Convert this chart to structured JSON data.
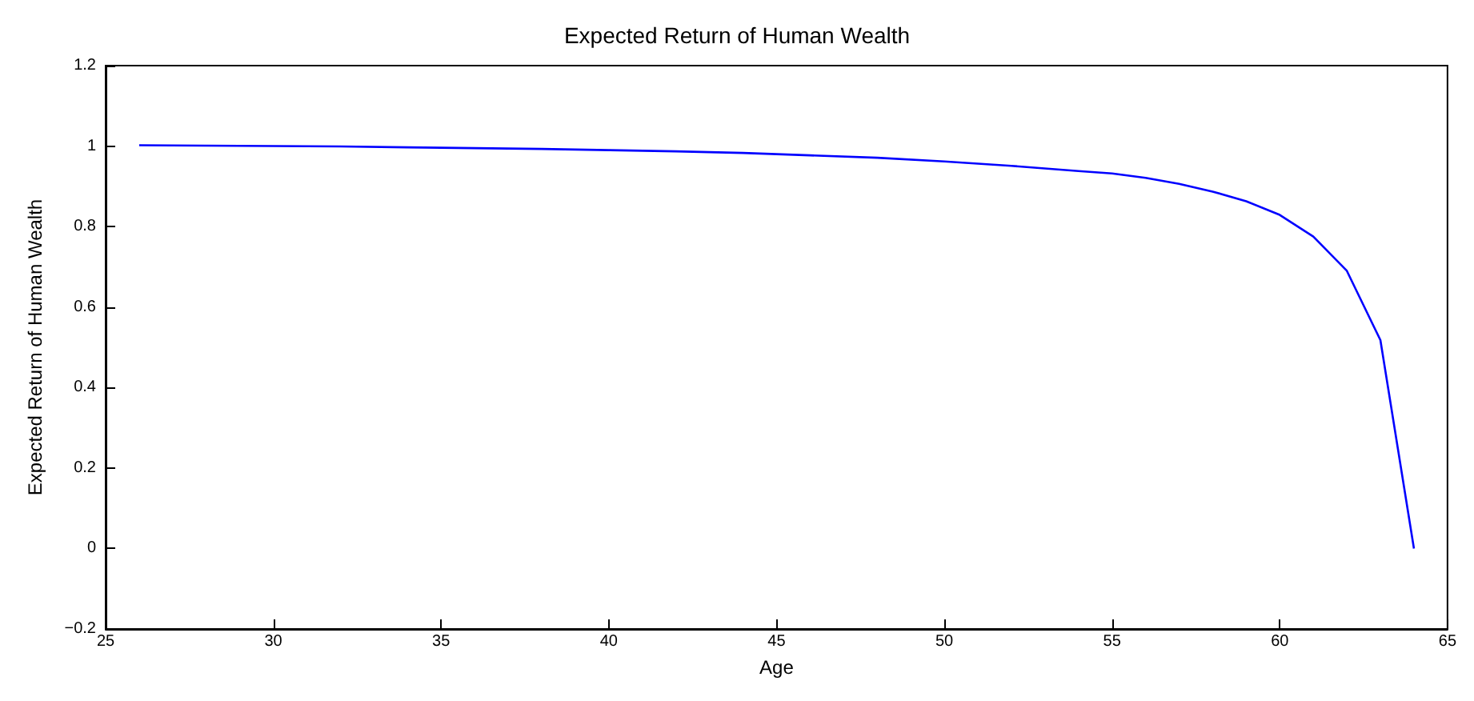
{
  "chart_data": {
    "type": "line",
    "title": "Expected Return of Human Wealth",
    "xlabel": "Age",
    "ylabel": "Expected Return of Human Wealth",
    "x": [
      26,
      28,
      30,
      32,
      34,
      36,
      38,
      40,
      42,
      44,
      46,
      48,
      50,
      52,
      54,
      55,
      56,
      57,
      58,
      59,
      60,
      61,
      62,
      63,
      64
    ],
    "series": [
      {
        "color": "#0000ff",
        "values": [
          1.002,
          1.001,
          1.0,
          0.999,
          0.997,
          0.995,
          0.993,
          0.99,
          0.987,
          0.983,
          0.977,
          0.971,
          0.962,
          0.951,
          0.938,
          0.932,
          0.921,
          0.906,
          0.887,
          0.863,
          0.829,
          0.775,
          0.69,
          0.518,
          0.0
        ]
      }
    ],
    "xlim": [
      25,
      65
    ],
    "xticks": [
      25,
      30,
      35,
      40,
      45,
      50,
      55,
      60,
      65
    ],
    "ylim": [
      -0.2,
      1.2
    ],
    "yticks": [
      -0.2,
      0,
      0.2,
      0.4,
      0.6,
      0.8,
      1,
      1.2
    ],
    "grid": false,
    "marker": "none",
    "line_style": "solid"
  }
}
